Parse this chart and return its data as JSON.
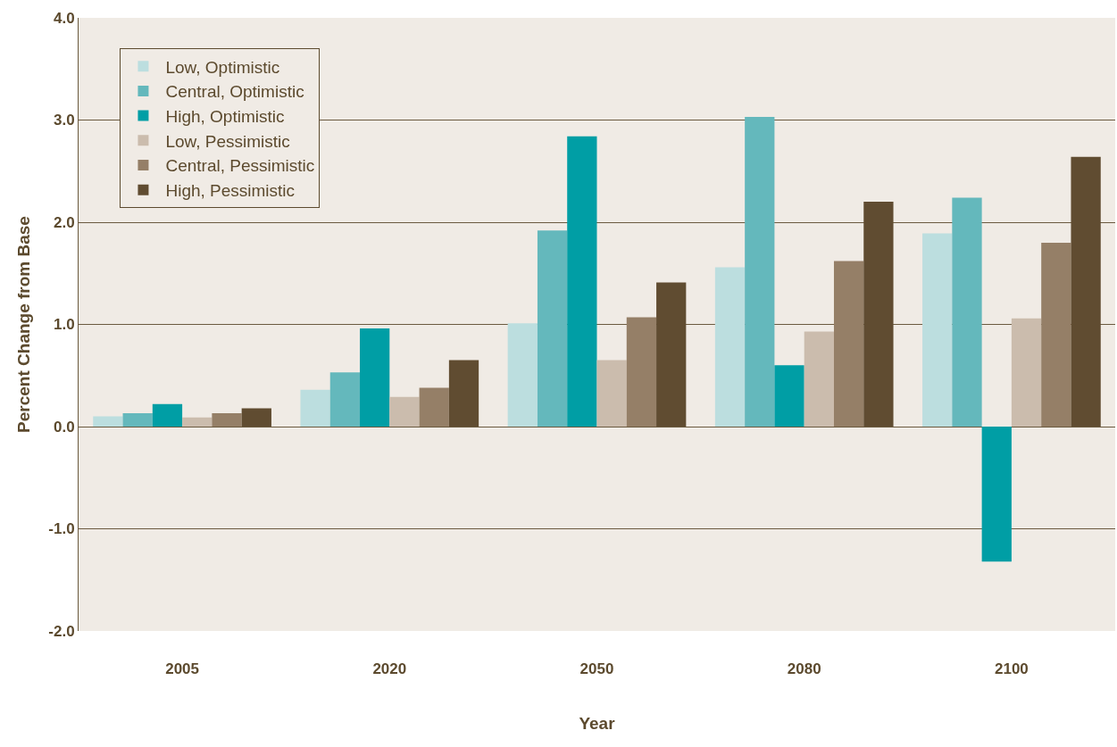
{
  "chart_data": {
    "type": "bar",
    "xlabel": "Year",
    "ylabel": "Percent Change from Base",
    "categories": [
      "2005",
      "2020",
      "2050",
      "2080",
      "2100"
    ],
    "series": [
      {
        "name": "Low, Optimistic",
        "color": "#bcdedf",
        "values": [
          0.1,
          0.36,
          1.01,
          1.56,
          1.89
        ]
      },
      {
        "name": "Central, Optimistic",
        "color": "#64b8bc",
        "values": [
          0.13,
          0.53,
          1.92,
          3.03,
          2.24
        ]
      },
      {
        "name": "High, Optimistic",
        "color": "#009ea5",
        "values": [
          0.22,
          0.96,
          2.84,
          0.6,
          -1.32
        ]
      },
      {
        "name": "Low, Pessimistic",
        "color": "#cbbcad",
        "values": [
          0.09,
          0.29,
          0.65,
          0.93,
          1.06
        ]
      },
      {
        "name": "Central, Pessimistic",
        "color": "#957f67",
        "values": [
          0.13,
          0.38,
          1.07,
          1.62,
          1.8
        ]
      },
      {
        "name": "High, Pessimistic",
        "color": "#604c31",
        "values": [
          0.18,
          0.65,
          1.41,
          2.2,
          2.64
        ]
      }
    ],
    "ylim": [
      -2,
      4
    ],
    "yticks": [
      {
        "value": -2,
        "label": "-2.0"
      },
      {
        "value": -1,
        "label": "-1.0"
      },
      {
        "value": 0,
        "label": "0.0"
      },
      {
        "value": 1,
        "label": "1.0"
      },
      {
        "value": 2,
        "label": "2.0"
      },
      {
        "value": 3,
        "label": "3.0"
      },
      {
        "value": 4,
        "label": "4.0"
      }
    ],
    "grid": "y",
    "legend": "top left"
  }
}
